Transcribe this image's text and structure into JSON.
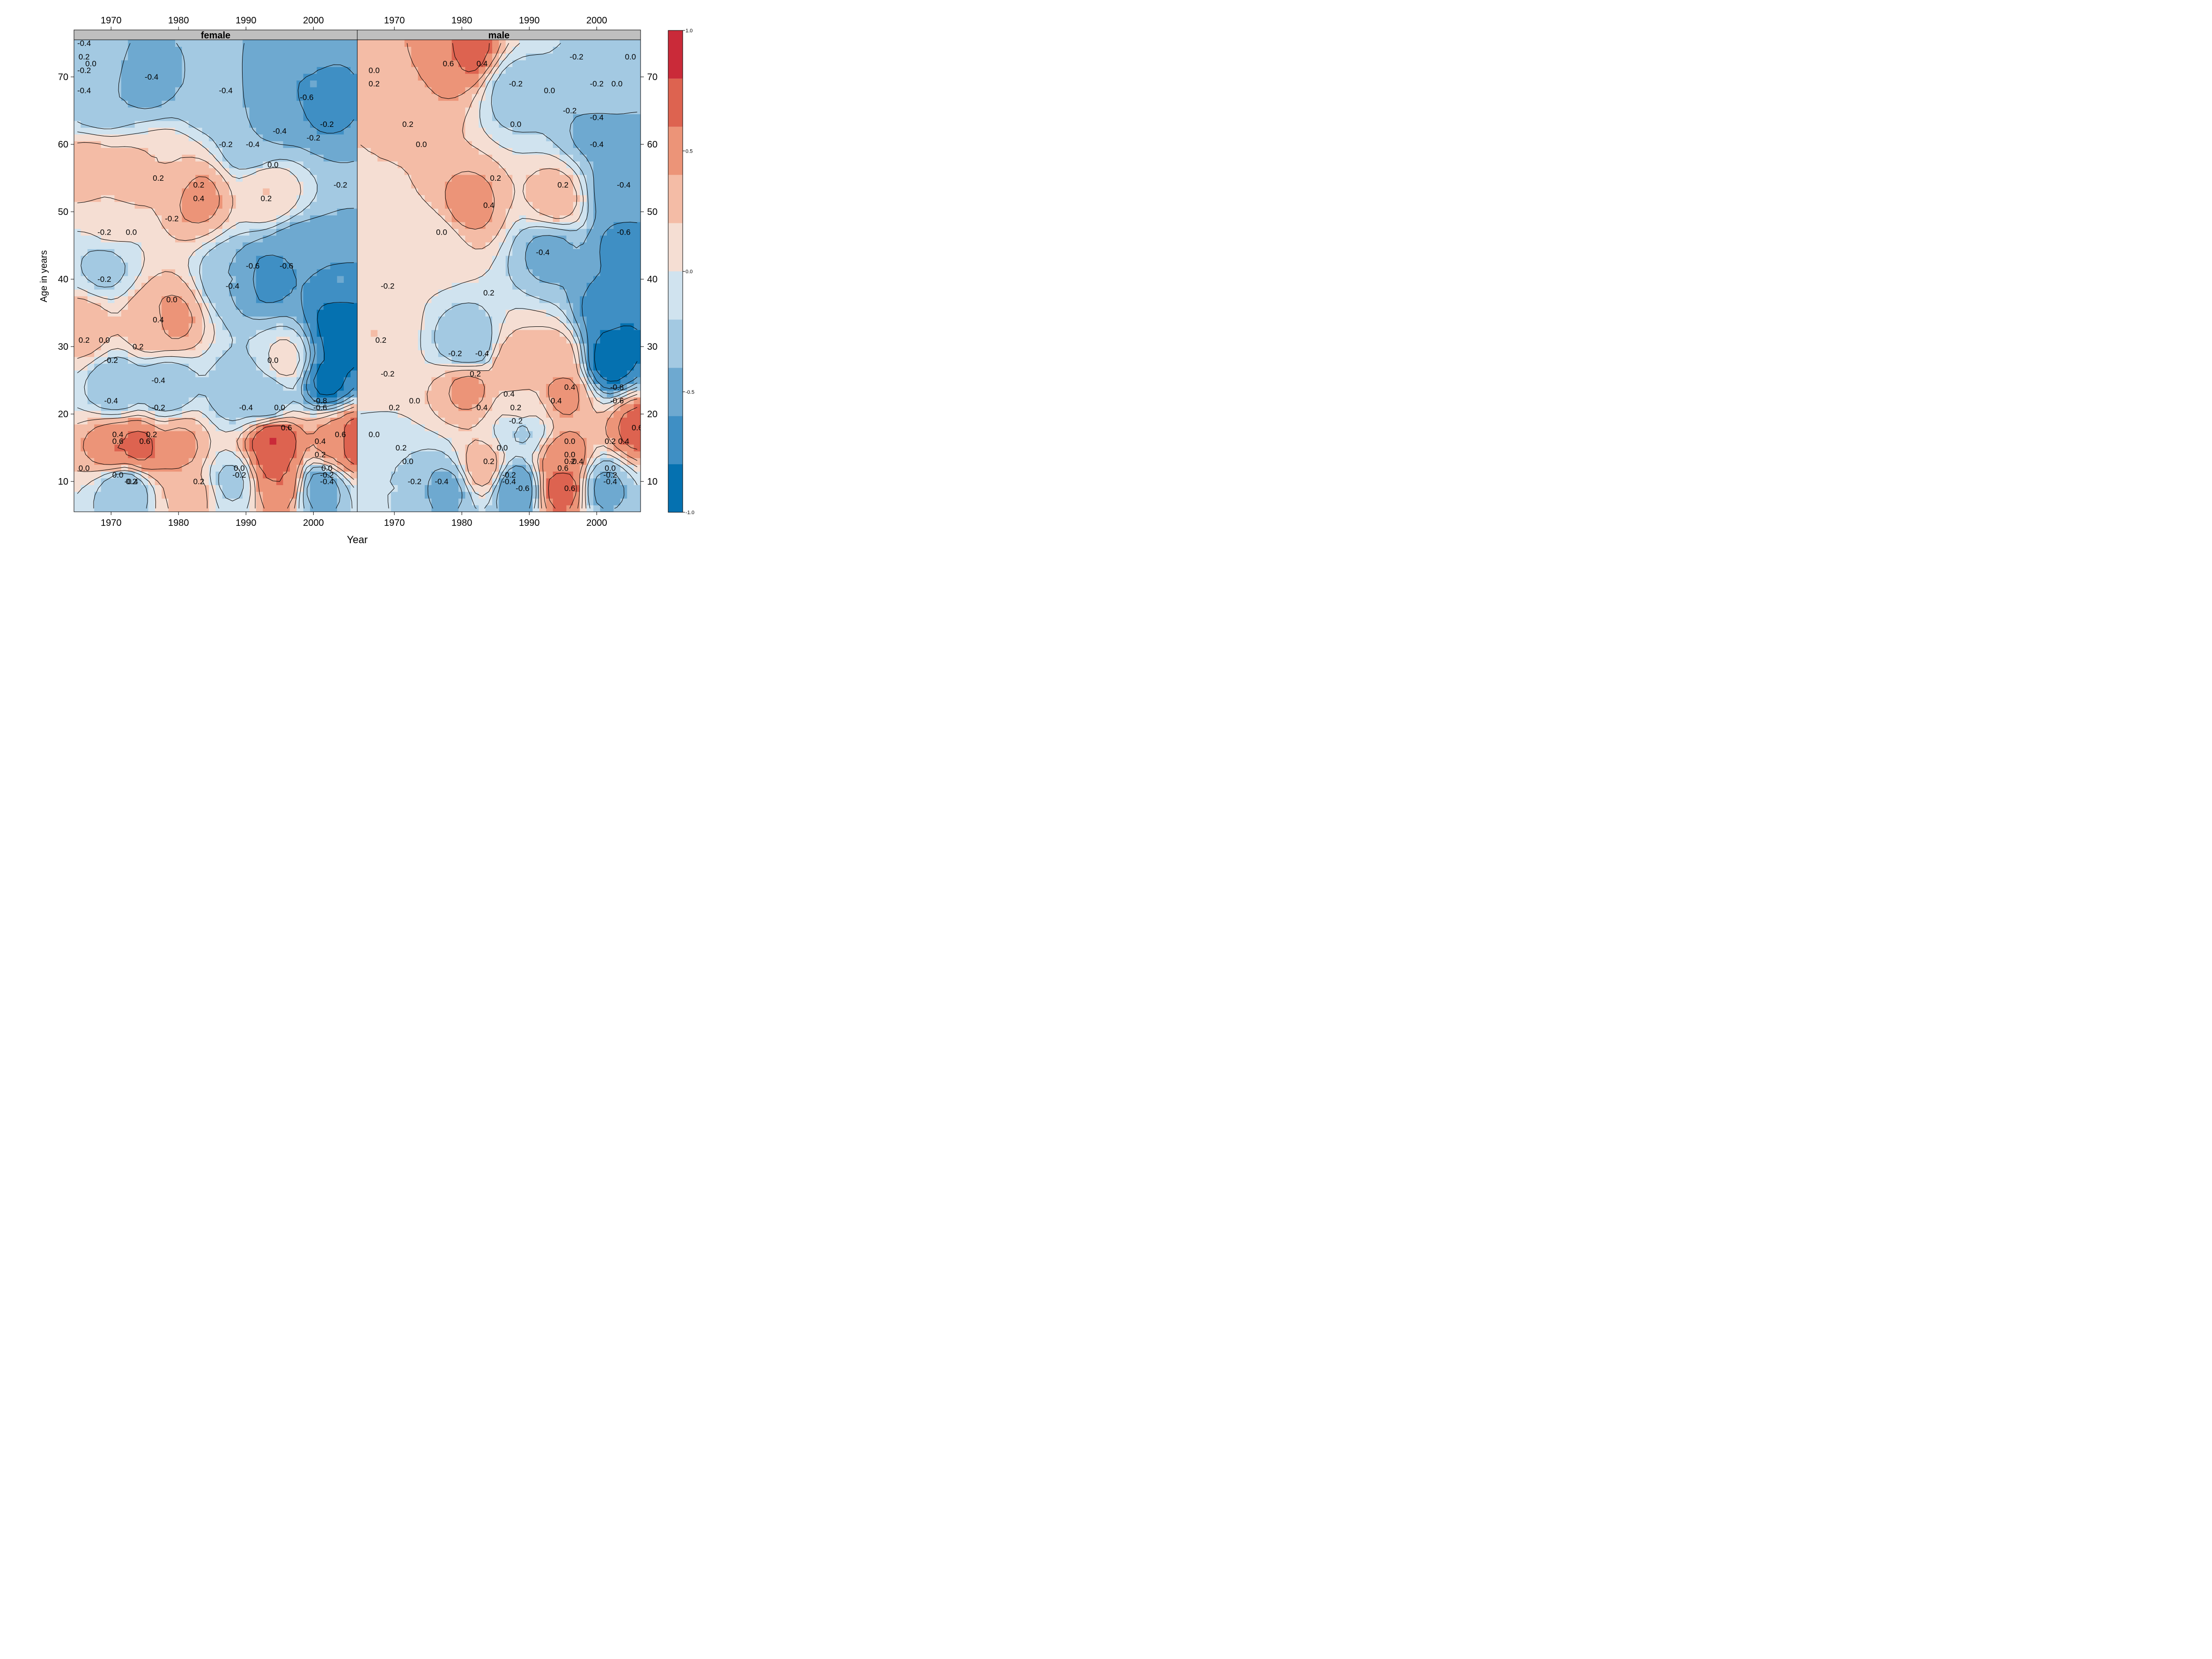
{
  "chart_data": {
    "type": "heatmap",
    "subtype": "filled contour plot with labeled contour lines",
    "xlabel": "Year",
    "ylabel": "Age in years",
    "x_ticks": [
      1970,
      1980,
      1990,
      2000
    ],
    "y_ticks": [
      10,
      20,
      30,
      40,
      50,
      60,
      70
    ],
    "xlim": [
      1964.5,
      2006.5
    ],
    "ylim": [
      5.5,
      75.5
    ],
    "x_axis_top_and_bottom": true,
    "y_axis_left_and_right": true,
    "panels": [
      {
        "name": "female",
        "label": "female",
        "cells": [
          {
            "x": 1968,
            "y": 72,
            "v": -0.3
          },
          {
            "x": 1975,
            "y": 70,
            "v": -0.5
          },
          {
            "x": 1969,
            "y": 67,
            "v": -0.4
          },
          {
            "x": 1985,
            "y": 68,
            "v": -0.4
          },
          {
            "x": 2000,
            "y": 69,
            "v": -0.6
          },
          {
            "x": 2001,
            "y": 67,
            "v": -0.7
          },
          {
            "x": 1995,
            "y": 64,
            "v": -0.45
          },
          {
            "x": 1998,
            "y": 74,
            "v": -0.5
          },
          {
            "x": 1991,
            "y": 60,
            "v": -0.4
          },
          {
            "x": 1967,
            "y": 56,
            "v": 0.3
          },
          {
            "x": 1972,
            "y": 55,
            "v": 0.3
          },
          {
            "x": 1978,
            "y": 56,
            "v": 0.2
          },
          {
            "x": 1983,
            "y": 52,
            "v": 0.45
          },
          {
            "x": 1993,
            "y": 53,
            "v": 0.2
          },
          {
            "x": 1970,
            "y": 48,
            "v": 0.05
          },
          {
            "x": 1993,
            "y": 40,
            "v": -0.65
          },
          {
            "x": 1997,
            "y": 43,
            "v": -0.6
          },
          {
            "x": 2004,
            "y": 40,
            "v": -0.6
          },
          {
            "x": 2004,
            "y": 30,
            "v": -0.85
          },
          {
            "x": 2002,
            "y": 25,
            "v": -0.85
          },
          {
            "x": 2004,
            "y": 34,
            "v": -0.9
          },
          {
            "x": 1988,
            "y": 40,
            "v": -0.4
          },
          {
            "x": 1969,
            "y": 42,
            "v": -0.25
          },
          {
            "x": 1966,
            "y": 33,
            "v": 0.3
          },
          {
            "x": 1976,
            "y": 33,
            "v": 0.35
          },
          {
            "x": 1979,
            "y": 34,
            "v": 0.45
          },
          {
            "x": 1971,
            "y": 24,
            "v": -0.4
          },
          {
            "x": 1978,
            "y": 24,
            "v": -0.4
          },
          {
            "x": 1989,
            "y": 23,
            "v": -0.35
          },
          {
            "x": 1993,
            "y": 22,
            "v": -0.4
          },
          {
            "x": 1996,
            "y": 28,
            "v": 0.05
          },
          {
            "x": 1974,
            "y": 15,
            "v": 0.65
          },
          {
            "x": 1971,
            "y": 15,
            "v": 0.6
          },
          {
            "x": 1980,
            "y": 15,
            "v": 0.45
          },
          {
            "x": 1994,
            "y": 13,
            "v": 0.65
          },
          {
            "x": 1995,
            "y": 10,
            "v": 0.6
          },
          {
            "x": 1994,
            "y": 16,
            "v": 0.8
          },
          {
            "x": 2006,
            "y": 16,
            "v": 0.75
          },
          {
            "x": 2003,
            "y": 16,
            "v": 0.45
          },
          {
            "x": 1972,
            "y": 9,
            "v": -0.4
          },
          {
            "x": 1988,
            "y": 10,
            "v": -0.25
          },
          {
            "x": 2001,
            "y": 9,
            "v": -0.5
          },
          {
            "x": 1982,
            "y": 8,
            "v": 0.25
          }
        ],
        "contour_labels": [
          {
            "x": 1966,
            "y": 75,
            "text": "-0.4"
          },
          {
            "x": 1966,
            "y": 73,
            "text": "0.2"
          },
          {
            "x": 1967,
            "y": 72,
            "text": "0.0"
          },
          {
            "x": 1966,
            "y": 71,
            "text": "-0.2"
          },
          {
            "x": 1976,
            "y": 70,
            "text": "-0.4"
          },
          {
            "x": 1966,
            "y": 68,
            "text": "-0.4"
          },
          {
            "x": 1987,
            "y": 68,
            "text": "-0.4"
          },
          {
            "x": 1999,
            "y": 67,
            "text": "-0.6"
          },
          {
            "x": 2002,
            "y": 63,
            "text": "-0.2"
          },
          {
            "x": 1995,
            "y": 62,
            "text": "-0.4"
          },
          {
            "x": 2000,
            "y": 61,
            "text": "-0.2"
          },
          {
            "x": 1987,
            "y": 60,
            "text": "-0.2"
          },
          {
            "x": 1991,
            "y": 60,
            "text": "-0.4"
          },
          {
            "x": 1994,
            "y": 57,
            "text": "0.0"
          },
          {
            "x": 1977,
            "y": 55,
            "text": "0.2"
          },
          {
            "x": 1983,
            "y": 54,
            "text": "0.2"
          },
          {
            "x": 2004,
            "y": 54,
            "text": "-0.2"
          },
          {
            "x": 1983,
            "y": 52,
            "text": "0.4"
          },
          {
            "x": 1993,
            "y": 52,
            "text": "0.2"
          },
          {
            "x": 1979,
            "y": 49,
            "text": "-0.2"
          },
          {
            "x": 1969,
            "y": 47,
            "text": "-0.2"
          },
          {
            "x": 1973,
            "y": 47,
            "text": "0.0"
          },
          {
            "x": 1991,
            "y": 42,
            "text": "-0.6"
          },
          {
            "x": 1996,
            "y": 42,
            "text": "-0.6"
          },
          {
            "x": 1969,
            "y": 40,
            "text": "-0.2"
          },
          {
            "x": 1988,
            "y": 39,
            "text": "-0.4"
          },
          {
            "x": 1979,
            "y": 37,
            "text": "0.0"
          },
          {
            "x": 1977,
            "y": 34,
            "text": "0.4"
          },
          {
            "x": 1966,
            "y": 31,
            "text": "0.2"
          },
          {
            "x": 1969,
            "y": 31,
            "text": "0.0"
          },
          {
            "x": 1974,
            "y": 30,
            "text": "0.2"
          },
          {
            "x": 1970,
            "y": 28,
            "text": "-0.2"
          },
          {
            "x": 1994,
            "y": 28,
            "text": "0.0"
          },
          {
            "x": 1977,
            "y": 25,
            "text": "-0.4"
          },
          {
            "x": 1970,
            "y": 22,
            "text": "-0.4"
          },
          {
            "x": 2001,
            "y": 22,
            "text": "-0.8"
          },
          {
            "x": 1977,
            "y": 21,
            "text": "-0.2"
          },
          {
            "x": 1990,
            "y": 21,
            "text": "-0.4"
          },
          {
            "x": 1995,
            "y": 21,
            "text": "0.0"
          },
          {
            "x": 2001,
            "y": 21,
            "text": "-0.6"
          },
          {
            "x": 1996,
            "y": 18,
            "text": "0.6"
          },
          {
            "x": 1971,
            "y": 17,
            "text": "0.4"
          },
          {
            "x": 1976,
            "y": 17,
            "text": "0.2"
          },
          {
            "x": 2004,
            "y": 17,
            "text": "0.6"
          },
          {
            "x": 1971,
            "y": 16,
            "text": "0.6"
          },
          {
            "x": 1975,
            "y": 16,
            "text": "0.6"
          },
          {
            "x": 2001,
            "y": 16,
            "text": "0.4"
          },
          {
            "x": 2001,
            "y": 14,
            "text": "0.2"
          },
          {
            "x": 1966,
            "y": 12,
            "text": "0.0"
          },
          {
            "x": 1989,
            "y": 12,
            "text": "0.0"
          },
          {
            "x": 2002,
            "y": 12,
            "text": "0.0"
          },
          {
            "x": 1971,
            "y": 11,
            "text": "0.0"
          },
          {
            "x": 1989,
            "y": 11,
            "text": "-0.2"
          },
          {
            "x": 2002,
            "y": 11,
            "text": "-0.2"
          },
          {
            "x": 1973,
            "y": 10,
            "text": "0.2"
          },
          {
            "x": 1983,
            "y": 10,
            "text": "0.2"
          },
          {
            "x": 1973,
            "y": 10,
            "text": "-0.4"
          },
          {
            "x": 2002,
            "y": 10,
            "text": "-0.4"
          }
        ]
      },
      {
        "name": "male",
        "label": "male",
        "cells": [
          {
            "x": 1981,
            "y": 74,
            "v": 0.65
          },
          {
            "x": 1976,
            "y": 72,
            "v": 0.45
          },
          {
            "x": 1971,
            "y": 68,
            "v": 0.3
          },
          {
            "x": 1968,
            "y": 63,
            "v": 0.2
          },
          {
            "x": 1988,
            "y": 68,
            "v": -0.3
          },
          {
            "x": 2000,
            "y": 68,
            "v": -0.3
          },
          {
            "x": 2000,
            "y": 62,
            "v": -0.45
          },
          {
            "x": 2004,
            "y": 58,
            "v": -0.5
          },
          {
            "x": 2003,
            "y": 53,
            "v": -0.5
          },
          {
            "x": 1981,
            "y": 51,
            "v": 0.45
          },
          {
            "x": 1994,
            "y": 52,
            "v": 0.3
          },
          {
            "x": 1976,
            "y": 45,
            "v": 0.05
          },
          {
            "x": 1993,
            "y": 44,
            "v": -0.45
          },
          {
            "x": 2004,
            "y": 45,
            "v": -0.65
          },
          {
            "x": 2002,
            "y": 35,
            "v": -0.7
          },
          {
            "x": 2002,
            "y": 28,
            "v": -0.9
          },
          {
            "x": 2003,
            "y": 31,
            "v": -0.85
          },
          {
            "x": 1981,
            "y": 30,
            "v": -0.4
          },
          {
            "x": 1967,
            "y": 32,
            "v": 0.2
          },
          {
            "x": 1981,
            "y": 24,
            "v": 0.45
          },
          {
            "x": 1988,
            "y": 27,
            "v": 0.35
          },
          {
            "x": 1994,
            "y": 28,
            "v": 0.35
          },
          {
            "x": 1995,
            "y": 23,
            "v": 0.45
          },
          {
            "x": 1989,
            "y": 20,
            "v": 0.1
          },
          {
            "x": 1989,
            "y": 18,
            "v": -0.25
          },
          {
            "x": 2006,
            "y": 18,
            "v": 0.65
          },
          {
            "x": 1995,
            "y": 13,
            "v": 0.55
          },
          {
            "x": 1995,
            "y": 9,
            "v": 0.7
          },
          {
            "x": 1988,
            "y": 9,
            "v": -0.6
          },
          {
            "x": 2001,
            "y": 9,
            "v": -0.45
          },
          {
            "x": 1978,
            "y": 9,
            "v": -0.45
          },
          {
            "x": 1970,
            "y": 9,
            "v": -0.2
          },
          {
            "x": 1983,
            "y": 12,
            "v": 0.3
          }
        ],
        "contour_labels": [
          {
            "x": 1997,
            "y": 73,
            "text": "-0.2"
          },
          {
            "x": 2005,
            "y": 73,
            "text": "0.0"
          },
          {
            "x": 1978,
            "y": 72,
            "text": "0.6"
          },
          {
            "x": 1983,
            "y": 72,
            "text": "0.4"
          },
          {
            "x": 1967,
            "y": 71,
            "text": "0.0"
          },
          {
            "x": 1967,
            "y": 69,
            "text": "0.2"
          },
          {
            "x": 1993,
            "y": 68,
            "text": "0.0"
          },
          {
            "x": 2000,
            "y": 69,
            "text": "-0.2"
          },
          {
            "x": 2003,
            "y": 69,
            "text": "0.0"
          },
          {
            "x": 1988,
            "y": 69,
            "text": "-0.2"
          },
          {
            "x": 1996,
            "y": 65,
            "text": "-0.2"
          },
          {
            "x": 2000,
            "y": 64,
            "text": "-0.4"
          },
          {
            "x": 1972,
            "y": 63,
            "text": "0.2"
          },
          {
            "x": 1988,
            "y": 63,
            "text": "0.0"
          },
          {
            "x": 2000,
            "y": 60,
            "text": "-0.4"
          },
          {
            "x": 1974,
            "y": 60,
            "text": "0.0"
          },
          {
            "x": 1985,
            "y": 55,
            "text": "0.2"
          },
          {
            "x": 1995,
            "y": 54,
            "text": "0.2"
          },
          {
            "x": 2004,
            "y": 54,
            "text": "-0.4"
          },
          {
            "x": 1984,
            "y": 51,
            "text": "0.4"
          },
          {
            "x": 1977,
            "y": 47,
            "text": "0.0"
          },
          {
            "x": 2004,
            "y": 47,
            "text": "-0.6"
          },
          {
            "x": 1992,
            "y": 44,
            "text": "-0.4"
          },
          {
            "x": 1969,
            "y": 39,
            "text": "-0.2"
          },
          {
            "x": 1984,
            "y": 38,
            "text": "0.2"
          },
          {
            "x": 1968,
            "y": 31,
            "text": "0.2"
          },
          {
            "x": 1979,
            "y": 29,
            "text": "-0.2"
          },
          {
            "x": 1983,
            "y": 29,
            "text": "-0.4"
          },
          {
            "x": 1969,
            "y": 26,
            "text": "-0.2"
          },
          {
            "x": 1982,
            "y": 26,
            "text": "0.2"
          },
          {
            "x": 1996,
            "y": 24,
            "text": "0.4"
          },
          {
            "x": 2003,
            "y": 24,
            "text": "-0.8"
          },
          {
            "x": 1987,
            "y": 23,
            "text": "0.4"
          },
          {
            "x": 2003,
            "y": 22,
            "text": "-0.6"
          },
          {
            "x": 1973,
            "y": 22,
            "text": "0.0"
          },
          {
            "x": 1970,
            "y": 21,
            "text": "0.2"
          },
          {
            "x": 1988,
            "y": 21,
            "text": "0.2"
          },
          {
            "x": 1994,
            "y": 22,
            "text": "0.4"
          },
          {
            "x": 1983,
            "y": 21,
            "text": "0.4"
          },
          {
            "x": 1988,
            "y": 19,
            "text": "-0.2"
          },
          {
            "x": 2006,
            "y": 18,
            "text": "0.6"
          },
          {
            "x": 2004,
            "y": 16,
            "text": "0.4"
          },
          {
            "x": 1967,
            "y": 17,
            "text": "0.0"
          },
          {
            "x": 1996,
            "y": 16,
            "text": "0.0"
          },
          {
            "x": 2002,
            "y": 16,
            "text": "0.2"
          },
          {
            "x": 1971,
            "y": 15,
            "text": "0.2"
          },
          {
            "x": 1986,
            "y": 15,
            "text": "0.0"
          },
          {
            "x": 1996,
            "y": 14,
            "text": "0.0"
          },
          {
            "x": 1972,
            "y": 13,
            "text": "0.0"
          },
          {
            "x": 1984,
            "y": 13,
            "text": "0.2"
          },
          {
            "x": 1996,
            "y": 13,
            "text": "0.2"
          },
          {
            "x": 1997,
            "y": 13,
            "text": "-0.4"
          },
          {
            "x": 1995,
            "y": 12,
            "text": "0.6"
          },
          {
            "x": 2002,
            "y": 12,
            "text": "0.0"
          },
          {
            "x": 1987,
            "y": 11,
            "text": "-0.2"
          },
          {
            "x": 2002,
            "y": 11,
            "text": "-0.2"
          },
          {
            "x": 1987,
            "y": 10,
            "text": "-0.4"
          },
          {
            "x": 2002,
            "y": 10,
            "text": "-0.4"
          },
          {
            "x": 1973,
            "y": 10,
            "text": "-0.2"
          },
          {
            "x": 1977,
            "y": 10,
            "text": "-0.4"
          },
          {
            "x": 1989,
            "y": 9,
            "text": "-0.6"
          },
          {
            "x": 1996,
            "y": 9,
            "text": "0.6"
          }
        ]
      }
    ],
    "colorbar": {
      "levels": [
        -1.0,
        -0.8,
        -0.6,
        -0.4,
        -0.2,
        0.0,
        0.2,
        0.4,
        0.6,
        0.8,
        1.0
      ],
      "colors": [
        "#0571b0",
        "#3f8fc4",
        "#6ea9d0",
        "#a3c9e2",
        "#d0e3ef",
        "#f5ded3",
        "#f4bca6",
        "#ec9478",
        "#dd6350",
        "#ca2a39"
      ],
      "tick_values": [
        -1.0,
        -0.5,
        0.0,
        0.5,
        1.0
      ],
      "tick_labels": [
        "-1.0",
        "-0.5",
        "0.0",
        "0.5",
        "1.0"
      ]
    },
    "strip_color": "#bfbfbf"
  }
}
